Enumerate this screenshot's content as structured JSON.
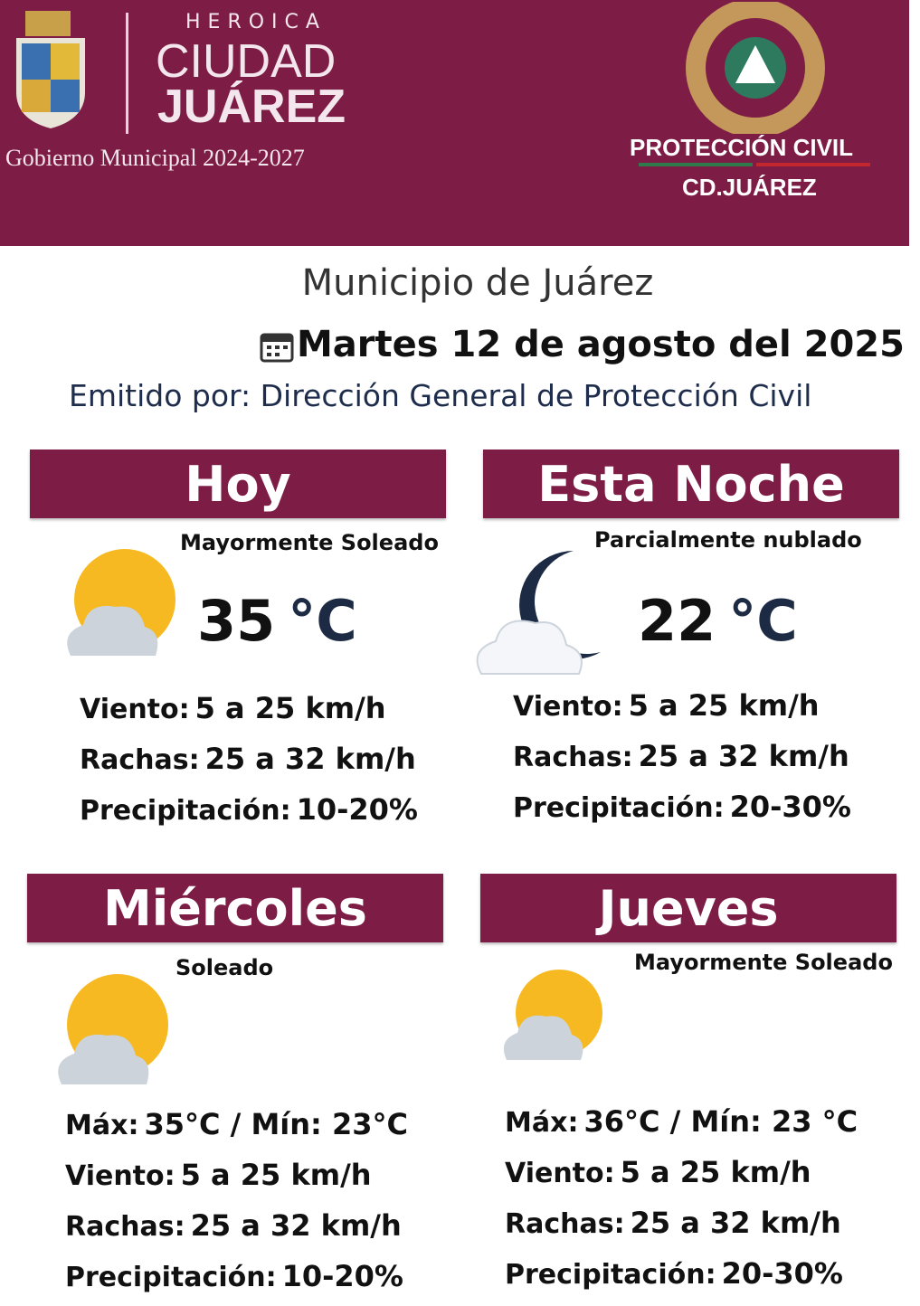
{
  "banner": {
    "heroica": "HEROICA",
    "ciudad": "CIUDAD",
    "juarez": "JUÁREZ",
    "gobierno": "Gobierno Municipal 2024-2027",
    "pc_title": "PROTECCIÓN CIVIL",
    "pc_city": "CD.JUÁREZ",
    "brand_color": "#7d1c45"
  },
  "title": "Municipio de Juárez",
  "date": "Martes 12 de agosto del 2025",
  "issued_by": "Emitido por: Dirección General de Protección Civil",
  "panels": [
    {
      "heading": "Hoy",
      "condition": "Mayormente Soleado",
      "temp": "35",
      "unit": "°C",
      "icon": "sun-cloud-icon",
      "rows": [
        {
          "k": "Viento:",
          "v": "5 a 25 km/h"
        },
        {
          "k": "Rachas:",
          "v": "25 a 32  km/h"
        },
        {
          "k": "Precipitación:",
          "v": "10-20%"
        }
      ]
    },
    {
      "heading": "Esta Noche",
      "condition": "Parcialmente nublado",
      "temp": "22",
      "unit": "°C",
      "icon": "moon-cloud-icon",
      "rows": [
        {
          "k": "Viento:",
          "v": "5 a 25 km/h"
        },
        {
          "k": "Rachas:",
          "v": "25 a 32 km/h"
        },
        {
          "k": "Precipitación:",
          "v": "20-30%"
        }
      ]
    },
    {
      "heading": "Miércoles",
      "condition": "Soleado",
      "icon": "sun-cloud-icon",
      "rows": [
        {
          "k": "Máx:",
          "v": "35°C / Mín:  23°C"
        },
        {
          "k": "Viento:",
          "v": "5 a 25 km/h"
        },
        {
          "k": "Rachas:",
          "v": "25 a 32 km/h"
        },
        {
          "k": "Precipitación:",
          "v": "10-20%"
        }
      ]
    },
    {
      "heading": "Jueves",
      "condition": "Mayormente Soleado",
      "icon": "sun-cloud-icon",
      "rows": [
        {
          "k": "Máx:",
          "v": "36°C / Mín: 23 °C"
        },
        {
          "k": "Viento:",
          "v": "5 a 25 km/h"
        },
        {
          "k": "Rachas:",
          "v": "25 a 32 km/h"
        },
        {
          "k": "Precipitación:",
          "v": "20-30%"
        }
      ]
    }
  ]
}
